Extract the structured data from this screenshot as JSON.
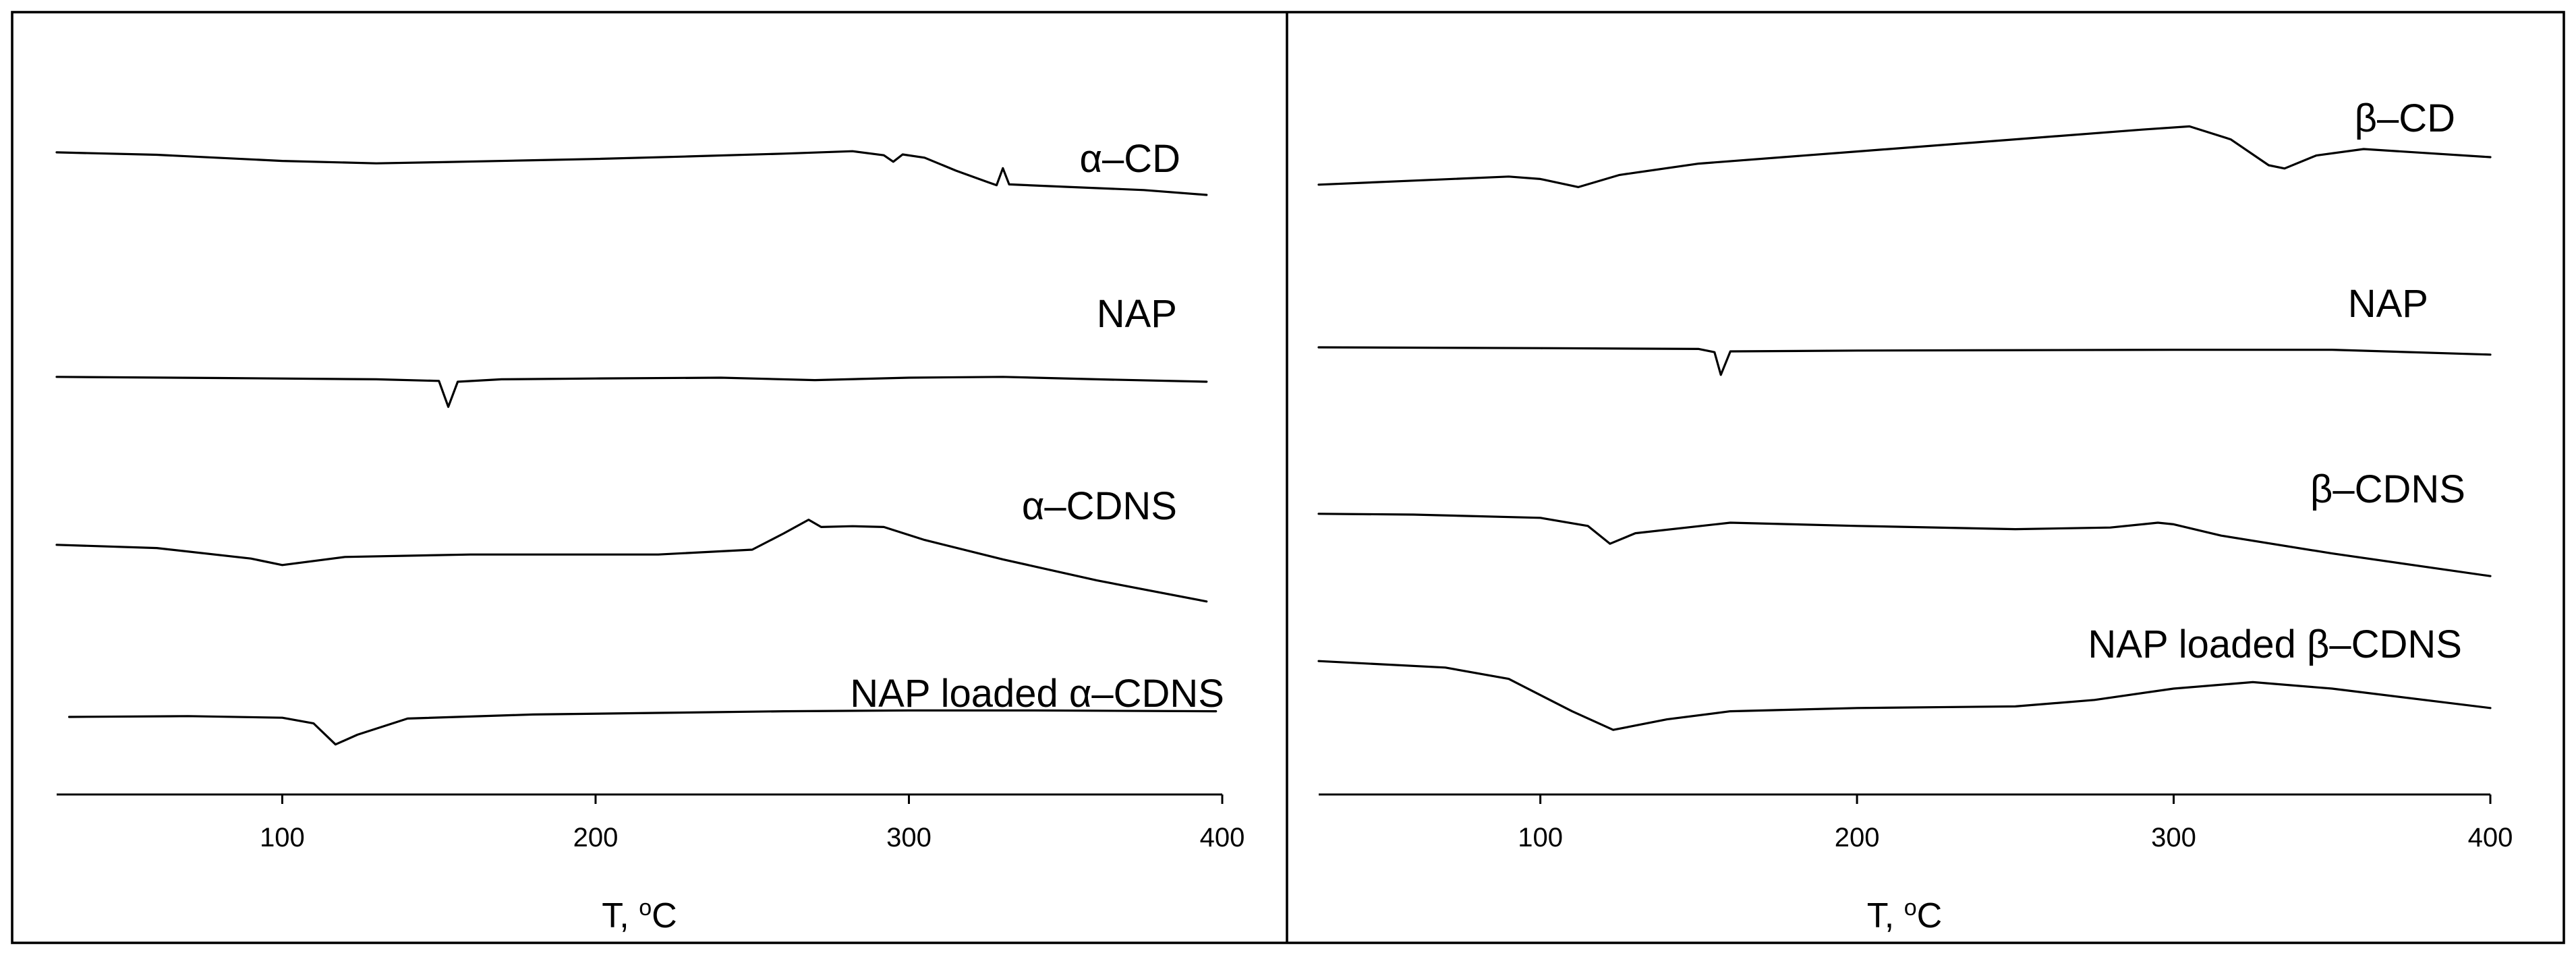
{
  "chart_data": [
    {
      "type": "line",
      "xlabel": "T, °C",
      "xlabel_parts": {
        "prefix": "T, ",
        "superscript": "o",
        "unit": "C"
      },
      "xlim": [
        28,
        400
      ],
      "xticks": [
        100,
        200,
        300,
        400
      ],
      "yticks_shown": false,
      "grid": false,
      "series": [
        {
          "name": "α–CD",
          "points": [
            [
              28,
              1.63
            ],
            [
              60,
              1.48
            ],
            [
              100,
              1.1
            ],
            [
              130,
              0.95
            ],
            [
              150,
              1.02
            ],
            [
              180,
              1.14
            ],
            [
              200,
              1.22
            ],
            [
              230,
              1.38
            ],
            [
              260,
              1.55
            ],
            [
              282,
              1.7
            ],
            [
              292,
              1.45
            ],
            [
              295,
              1.05
            ],
            [
              298,
              1.5
            ],
            [
              305,
              1.3
            ],
            [
              315,
              0.5
            ],
            [
              325,
              -0.2
            ],
            [
              328,
              -0.4
            ],
            [
              330,
              0.65
            ],
            [
              332,
              -0.35
            ],
            [
              350,
              -0.5
            ],
            [
              375,
              -0.7
            ],
            [
              395,
              -1.0
            ]
          ]
        },
        {
          "name": "NAP",
          "points": [
            [
              28,
              0.05
            ],
            [
              80,
              -0.02
            ],
            [
              130,
              -0.1
            ],
            [
              150,
              -0.2
            ],
            [
              153,
              -1.8
            ],
            [
              156,
              -0.25
            ],
            [
              170,
              -0.1
            ],
            [
              200,
              -0.05
            ],
            [
              240,
              0.0
            ],
            [
              270,
              -0.15
            ],
            [
              300,
              0.0
            ],
            [
              330,
              0.05
            ],
            [
              360,
              -0.1
            ],
            [
              395,
              -0.25
            ]
          ]
        },
        {
          "name": "α–CDNS",
          "points": [
            [
              28,
              0.3
            ],
            [
              60,
              0.1
            ],
            [
              90,
              -0.55
            ],
            [
              100,
              -0.95
            ],
            [
              120,
              -0.45
            ],
            [
              160,
              -0.3
            ],
            [
              220,
              -0.3
            ],
            [
              250,
              0.0
            ],
            [
              260,
              1.0
            ],
            [
              268,
              1.85
            ],
            [
              272,
              1.4
            ],
            [
              282,
              1.45
            ],
            [
              292,
              1.4
            ],
            [
              305,
              0.6
            ],
            [
              330,
              -0.6
            ],
            [
              360,
              -1.9
            ],
            [
              395,
              -3.2
            ]
          ]
        },
        {
          "name": "NAP loaded α–CDNS",
          "points": [
            [
              32,
              0.5
            ],
            [
              70,
              0.55
            ],
            [
              100,
              0.45
            ],
            [
              110,
              0.1
            ],
            [
              117,
              -1.2
            ],
            [
              124,
              -0.6
            ],
            [
              140,
              0.4
            ],
            [
              180,
              0.65
            ],
            [
              220,
              0.75
            ],
            [
              260,
              0.85
            ],
            [
              300,
              0.9
            ],
            [
              340,
              0.9
            ],
            [
              398,
              0.85
            ]
          ]
        }
      ],
      "series_labels": [
        "α–CD",
        "NAP",
        "α–CDNS",
        "NAP loaded α–CDNS"
      ]
    },
    {
      "type": "line",
      "xlabel": "T, °C",
      "xlabel_parts": {
        "prefix": "T, ",
        "superscript": "o",
        "unit": "C"
      },
      "xlim": [
        30,
        400
      ],
      "xticks": [
        100,
        200,
        300,
        400
      ],
      "yticks_shown": false,
      "grid": false,
      "series": [
        {
          "name": "β–CD",
          "points": [
            [
              30,
              -1.2
            ],
            [
              60,
              -0.95
            ],
            [
              90,
              -0.7
            ],
            [
              100,
              -0.85
            ],
            [
              112,
              -1.35
            ],
            [
              125,
              -0.6
            ],
            [
              150,
              0.1
            ],
            [
              200,
              0.85
            ],
            [
              250,
              1.6
            ],
            [
              290,
              2.2
            ],
            [
              305,
              2.4
            ],
            [
              318,
              1.6
            ],
            [
              330,
              0.0
            ],
            [
              335,
              -0.2
            ],
            [
              345,
              0.6
            ],
            [
              360,
              1.0
            ],
            [
              400,
              0.5
            ]
          ]
        },
        {
          "name": "NAP",
          "points": [
            [
              30,
              0.0
            ],
            [
              100,
              -0.05
            ],
            [
              150,
              -0.1
            ],
            [
              155,
              -0.3
            ],
            [
              157,
              -1.7
            ],
            [
              160,
              -0.25
            ],
            [
              200,
              -0.2
            ],
            [
              300,
              -0.15
            ],
            [
              350,
              -0.15
            ],
            [
              400,
              -0.45
            ]
          ]
        },
        {
          "name": "β–CDNS",
          "points": [
            [
              30,
              0.55
            ],
            [
              60,
              0.5
            ],
            [
              100,
              0.3
            ],
            [
              115,
              -0.2
            ],
            [
              122,
              -1.3
            ],
            [
              130,
              -0.65
            ],
            [
              160,
              0.0
            ],
            [
              200,
              -0.2
            ],
            [
              250,
              -0.4
            ],
            [
              280,
              -0.3
            ],
            [
              295,
              0.0
            ],
            [
              300,
              -0.1
            ],
            [
              315,
              -0.8
            ],
            [
              350,
              -1.9
            ],
            [
              400,
              -3.3
            ]
          ]
        },
        {
          "name": "NAP loaded β–CDNS",
          "points": [
            [
              30,
              2.7
            ],
            [
              70,
              2.3
            ],
            [
              90,
              1.6
            ],
            [
              110,
              -0.4
            ],
            [
              123,
              -1.55
            ],
            [
              140,
              -0.9
            ],
            [
              160,
              -0.4
            ],
            [
              200,
              -0.2
            ],
            [
              250,
              -0.1
            ],
            [
              275,
              0.3
            ],
            [
              300,
              1.0
            ],
            [
              325,
              1.4
            ],
            [
              350,
              1.0
            ],
            [
              400,
              -0.2
            ]
          ]
        }
      ],
      "series_labels": [
        "β–CD",
        "NAP",
        "β–CDNS",
        "NAP loaded β–CDNS"
      ]
    }
  ]
}
